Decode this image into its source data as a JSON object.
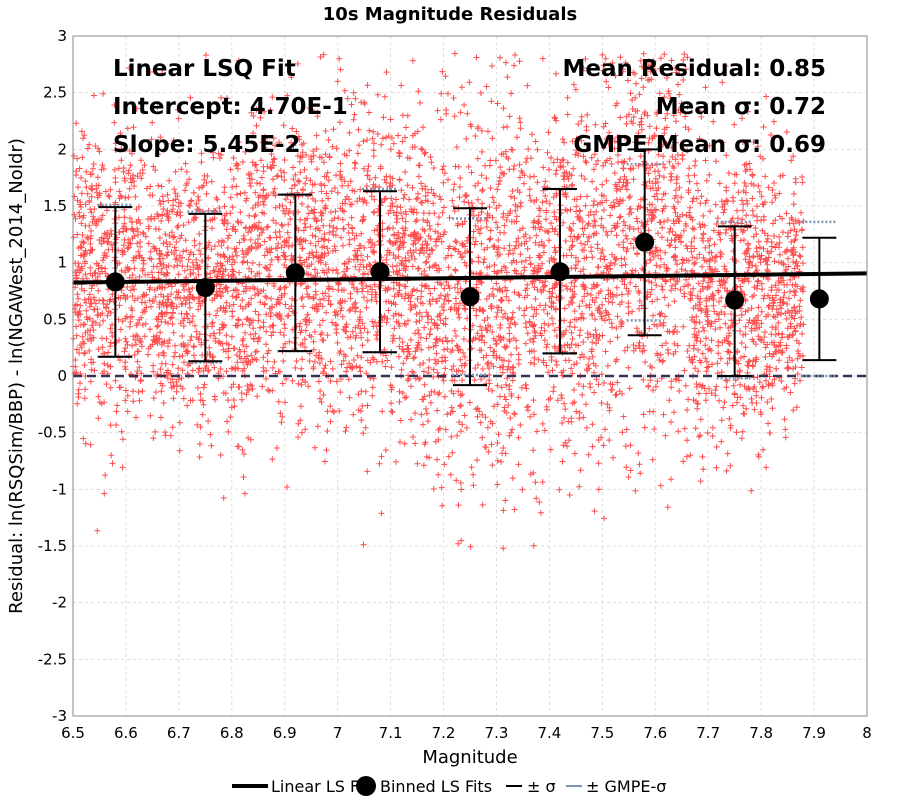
{
  "chart_data": {
    "type": "scatter",
    "title": "10s Magnitude Residuals",
    "xlabel": "Magnitude",
    "ylabel": "Residual: ln(RSQSim/BBP) - ln(NGAWest_2014_NoIdr)",
    "xlim": [
      6.5,
      8.0
    ],
    "ylim": [
      -3,
      3
    ],
    "x_ticks": [
      "6.5",
      "6.6",
      "6.7",
      "6.8",
      "6.9",
      "7",
      "7.1",
      "7.2",
      "7.3",
      "7.4",
      "7.5",
      "7.6",
      "7.7",
      "7.8",
      "7.9",
      "8"
    ],
    "y_ticks": [
      "-3",
      "-2.5",
      "-2",
      "-1.5",
      "-1",
      "-0.5",
      "0",
      "0.5",
      "1",
      "1.5",
      "2",
      "2.5",
      "3"
    ],
    "grid": true,
    "annotations_left": [
      "Linear LSQ Fit",
      "Intercept: 4.70E-1",
      "Slope: 5.45E-2"
    ],
    "annotations_right": [
      "Mean Residual: 0.85",
      "Mean σ: 0.72",
      "GMPE Mean σ: 0.69"
    ],
    "fit_line": {
      "intercept_at_6_5": 0.825,
      "value_at_8_0": 0.905
    },
    "zero_line": 0,
    "bins": [
      {
        "x": 6.58,
        "mean": 0.83,
        "lower": 0.17,
        "upper": 1.49,
        "gmpe_lower": 0.17,
        "gmpe_upper": 1.51
      },
      {
        "x": 6.75,
        "mean": 0.78,
        "lower": 0.13,
        "upper": 1.43,
        "gmpe_lower": 0.12,
        "gmpe_upper": 1.45
      },
      {
        "x": 6.92,
        "mean": 0.91,
        "lower": 0.22,
        "upper": 1.6,
        "gmpe_lower": 0.22,
        "gmpe_upper": 1.6
      },
      {
        "x": 7.08,
        "mean": 0.92,
        "lower": 0.21,
        "upper": 1.63,
        "gmpe_lower": 0.21,
        "gmpe_upper": 1.65
      },
      {
        "x": 7.25,
        "mean": 0.7,
        "lower": -0.08,
        "upper": 1.48,
        "gmpe_lower": 0.01,
        "gmpe_upper": 1.39
      },
      {
        "x": 7.42,
        "mean": 0.92,
        "lower": 0.2,
        "upper": 1.65,
        "gmpe_lower": 0.2,
        "gmpe_upper": 1.65
      },
      {
        "x": 7.58,
        "mean": 1.18,
        "lower": 0.36,
        "upper": 2.0,
        "gmpe_lower": 0.49,
        "gmpe_upper": 1.87
      },
      {
        "x": 7.75,
        "mean": 0.67,
        "lower": 0.0,
        "upper": 1.32,
        "gmpe_lower": -0.02,
        "gmpe_upper": 1.36
      },
      {
        "x": 7.91,
        "mean": 0.68,
        "lower": 0.14,
        "upper": 1.22,
        "gmpe_lower": 0.0,
        "gmpe_upper": 1.36
      }
    ],
    "legend": [
      "Linear LS Fit",
      "Binned LS Fits",
      "± σ",
      "± GMPE-σ"
    ],
    "colors": {
      "points": "#ff4d4d",
      "fit_line": "#000000",
      "bins": "#000000",
      "sigma": "#000000",
      "gmpe_sigma": "#7f93b5",
      "zero_line": "#333355",
      "grid": "#dddddd"
    }
  }
}
